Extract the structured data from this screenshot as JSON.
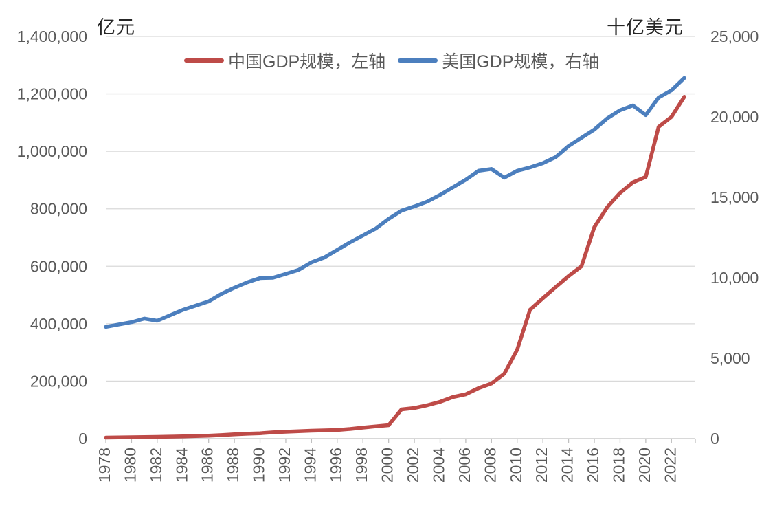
{
  "chart_data": {
    "type": "line",
    "title": "",
    "legend_position": "top",
    "grid": "horizontal-light",
    "left_axis": {
      "title": "亿元",
      "min": 0,
      "max": 1400000,
      "tick_step": 200000,
      "ticks": [
        0,
        200000,
        400000,
        600000,
        800000,
        1000000,
        1200000,
        1400000
      ]
    },
    "right_axis": {
      "title": "十亿美元",
      "min": 0,
      "max": 25000,
      "tick_step": 5000,
      "ticks": [
        0,
        5000,
        10000,
        15000,
        20000,
        25000
      ]
    },
    "x_axis": {
      "tick_years": [
        1978,
        1980,
        1982,
        1984,
        1986,
        1988,
        1990,
        1992,
        1994,
        1996,
        1998,
        2000,
        2002,
        2004,
        2006,
        2008,
        2010,
        2012,
        2014,
        2016,
        2018,
        2020,
        2022
      ],
      "label_rotation_deg": 90
    },
    "years": [
      1978,
      1979,
      1980,
      1981,
      1982,
      1983,
      1984,
      1985,
      1986,
      1987,
      1988,
      1989,
      1990,
      1991,
      1992,
      1993,
      1994,
      1995,
      1996,
      1997,
      1998,
      1999,
      2000,
      2001,
      2002,
      2003,
      2004,
      2005,
      2006,
      2007,
      2008,
      2009,
      2010,
      2011,
      2012,
      2013,
      2014,
      2015,
      2016,
      2017,
      2018,
      2019,
      2020,
      2021,
      2022,
      2023
    ],
    "series": [
      {
        "name": "中国GDP规模，左轴",
        "axis": "left",
        "color": "#BE4B48",
        "unit": "亿元",
        "values": [
          3600,
          4100,
          4700,
          5300,
          6000,
          6900,
          8000,
          9100,
          10300,
          12100,
          15000,
          17000,
          18700,
          21800,
          24000,
          25800,
          27500,
          28700,
          30000,
          33500,
          38300,
          42500,
          46700,
          101700,
          106500,
          116100,
          128000,
          144800,
          154300,
          176000,
          192000,
          226000,
          310000,
          449000,
          489000,
          528000,
          566000,
          600000,
          736000,
          805000,
          855000,
          892000,
          911000,
          1085000,
          1120000,
          1190000
        ]
      },
      {
        "name": "美国GDP规模，右轴",
        "axis": "right",
        "color": "#4C7FBE",
        "unit": "十亿美元",
        "values": [
          6950,
          7100,
          7240,
          7460,
          7330,
          7670,
          8010,
          8270,
          8530,
          9000,
          9380,
          9720,
          9980,
          10000,
          10240,
          10490,
          10960,
          11260,
          11730,
          12200,
          12630,
          13060,
          13660,
          14170,
          14430,
          14730,
          15150,
          15620,
          16090,
          16650,
          16760,
          16220,
          16650,
          16860,
          17120,
          17500,
          18190,
          18700,
          19210,
          19900,
          20410,
          20710,
          20110,
          21200,
          21650,
          22420
        ]
      }
    ],
    "colors": {
      "gridline": "#D9D9D9",
      "axis_line": "#C0C0C0",
      "tick_label": "#595959",
      "axis_title": "#262626"
    }
  }
}
